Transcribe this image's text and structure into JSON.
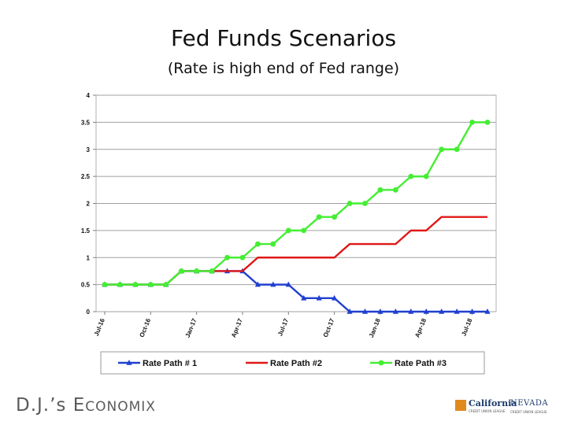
{
  "title": "Fed Funds Scenarios",
  "subtitle": "(Rate is high end of Fed range)",
  "brand": {
    "first": "D.J.’s E",
    "first_sc": "CONOMIX"
  },
  "logos": {
    "california": "California",
    "california_small": "CREDIT UNION LEAGUE",
    "nevada": "NEVADA",
    "nevada_small": "CREDIT UNION LEAGUE"
  },
  "chart_data": {
    "type": "line",
    "ylim": [
      0,
      4
    ],
    "yticks": [
      0,
      0.5,
      1,
      1.5,
      2,
      2.5,
      3,
      3.5,
      4
    ],
    "ytick_labels": [
      "0",
      "0.5",
      "1",
      "1.5",
      "2",
      "2.5",
      "3",
      "3.5",
      "4"
    ],
    "x_tick_labels": [
      "Jul-16",
      "Oct-16",
      "Jan-17",
      "Apr-17",
      "Jul-17",
      "Oct-17",
      "Jan-18",
      "Apr-18",
      "Jul-18"
    ],
    "x_tick_positions": [
      0,
      3,
      6,
      9,
      12,
      15,
      18,
      21,
      24
    ],
    "grid": true,
    "legend_position": "bottom",
    "series": [
      {
        "name": "Rate Path # 1",
        "color": "#2040d0",
        "marker": "triangle",
        "values": [
          0.5,
          0.5,
          0.5,
          0.5,
          0.5,
          0.75,
          0.75,
          0.75,
          0.75,
          0.75,
          0.5,
          0.5,
          0.5,
          0.25,
          0.25,
          0.25,
          0,
          0,
          0,
          0,
          0,
          0,
          0,
          0,
          0,
          0
        ]
      },
      {
        "name": "Rate Path #2",
        "color": "#e01818",
        "marker": "none",
        "values": [
          0.5,
          0.5,
          0.5,
          0.5,
          0.5,
          0.75,
          0.75,
          0.75,
          0.75,
          0.75,
          1,
          1,
          1,
          1,
          1,
          1,
          1.25,
          1.25,
          1.25,
          1.25,
          1.5,
          1.5,
          1.75,
          1.75,
          1.75,
          1.75
        ]
      },
      {
        "name": "Rate Path #3",
        "color": "#44ee33",
        "marker": "circle",
        "values": [
          0.5,
          0.5,
          0.5,
          0.5,
          0.5,
          0.75,
          0.75,
          0.75,
          1,
          1,
          1.25,
          1.25,
          1.5,
          1.5,
          1.75,
          1.75,
          2,
          2,
          2.25,
          2.25,
          2.5,
          2.5,
          3,
          3,
          3.5,
          3.5
        ]
      }
    ]
  }
}
